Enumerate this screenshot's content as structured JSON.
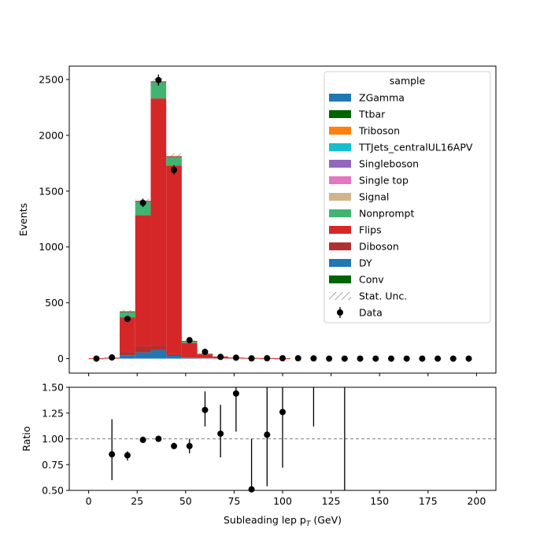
{
  "chart_data": [
    {
      "type": "bar",
      "stacked": true,
      "histogram": true,
      "ylabel": "Events",
      "xlim": [
        -10,
        210
      ],
      "ylim": [
        -130,
        2620
      ],
      "yticks": [
        0,
        500,
        1000,
        1500,
        2000,
        2500
      ],
      "xticks": [
        0,
        25,
        50,
        75,
        100,
        125,
        150,
        175,
        200
      ],
      "bin_edges": [
        0,
        8,
        16,
        24,
        32,
        40,
        48,
        56,
        64,
        72,
        80,
        88,
        96,
        104
      ],
      "legend": {
        "title": "sample",
        "placement": "top-right",
        "entries": [
          "ZGamma",
          "Ttbar",
          "Triboson",
          "TTJets_centralUL16APV",
          "Singleboson",
          "Single top",
          "Signal",
          "Nonprompt",
          "Flips",
          "Diboson",
          "DY",
          "Conv",
          "Stat. Unc.",
          "Data"
        ]
      },
      "series": [
        {
          "name": "ZGamma",
          "color": "#1f77b4",
          "values": [
            0,
            0,
            0,
            0,
            0,
            0,
            0,
            0,
            0,
            0,
            0,
            0,
            0
          ]
        },
        {
          "name": "Ttbar",
          "color": "#006400",
          "values": [
            0,
            0,
            0,
            0,
            0,
            0,
            0,
            0,
            0,
            0,
            0,
            0,
            0
          ]
        },
        {
          "name": "Triboson",
          "color": "#ff7f0e",
          "values": [
            0,
            0,
            0,
            0,
            0,
            0,
            0,
            0,
            0,
            0,
            0,
            0,
            0
          ]
        },
        {
          "name": "TTJets_centralUL16APV",
          "color": "#17becf",
          "values": [
            0,
            0,
            0,
            0,
            0,
            0,
            0,
            0,
            0,
            0,
            0,
            0,
            0
          ]
        },
        {
          "name": "Singleboson",
          "color": "#9467bd",
          "values": [
            0,
            0,
            0,
            0,
            0,
            0,
            0,
            0,
            0,
            0,
            0,
            0,
            0
          ]
        },
        {
          "name": "Single top",
          "color": "#e377c2",
          "values": [
            0,
            0,
            0,
            0,
            0,
            0,
            0,
            0,
            0,
            0,
            0,
            0,
            0
          ]
        },
        {
          "name": "Signal",
          "color": "#d2b48c",
          "values": [
            0,
            0,
            0,
            0,
            0,
            0,
            0,
            0,
            0,
            0,
            0,
            0,
            0
          ]
        },
        {
          "name": "Conv",
          "color": "#006400",
          "values": [
            0,
            0,
            0,
            0,
            0,
            0,
            0,
            0,
            0,
            0,
            0,
            0,
            0
          ]
        },
        {
          "name": "DY",
          "color": "#1f77b4",
          "values": [
            0,
            0,
            30,
            55,
            75,
            25,
            5,
            2,
            1,
            0,
            0,
            0,
            0
          ]
        },
        {
          "name": "Diboson",
          "color": "#b03030",
          "values": [
            0,
            3,
            30,
            55,
            45,
            15,
            5,
            3,
            1,
            1,
            0,
            0,
            0
          ]
        },
        {
          "name": "Flips",
          "color": "#d62728",
          "values": [
            0,
            2,
            310,
            1175,
            2210,
            1690,
            130,
            30,
            10,
            4,
            2,
            1,
            0
          ]
        },
        {
          "name": "Nonprompt",
          "color": "#41b471",
          "values": [
            0,
            0,
            50,
            125,
            150,
            80,
            15,
            5,
            3,
            1,
            1,
            0,
            0
          ]
        }
      ],
      "data_points": {
        "name": "Data",
        "x": [
          4,
          12,
          20,
          28,
          36,
          44,
          52,
          60,
          68,
          76,
          84,
          92,
          100,
          108,
          116,
          124,
          132,
          140,
          148,
          156,
          164,
          172,
          180,
          188,
          196
        ],
        "y": [
          0,
          10,
          355,
          1395,
          2495,
          1690,
          165,
          60,
          15,
          8,
          2,
          3,
          3,
          3,
          2,
          0,
          0,
          0,
          0,
          0,
          0,
          0,
          0,
          0,
          0
        ],
        "yerr": [
          0,
          3,
          19,
          37,
          50,
          41,
          13,
          8,
          4,
          3,
          1.4,
          1.7,
          1.7,
          1.7,
          1.4,
          0,
          0,
          0,
          0,
          0,
          0,
          0,
          0,
          0,
          0
        ]
      }
    },
    {
      "type": "scatter",
      "xlabel": "Subleading lep pT (GeV)",
      "ylabel": "Ratio",
      "xlim": [
        -10,
        210
      ],
      "ylim": [
        0.5,
        1.5
      ],
      "yticks": [
        "0.50",
        "0.75",
        "1.00",
        "1.25",
        "1.50"
      ],
      "xticks": [
        "0",
        "25",
        "50",
        "75",
        "100",
        "125",
        "150",
        "175",
        "200"
      ],
      "reference_line": 1.0,
      "points": {
        "x": [
          12,
          20,
          28,
          36,
          44,
          52,
          60,
          68,
          76,
          84,
          92,
          100
        ],
        "y": [
          0.85,
          0.84,
          0.99,
          1.0,
          0.93,
          0.93,
          1.28,
          1.05,
          1.44,
          0.51,
          1.04,
          1.26
        ],
        "ylow": [
          0.6,
          0.79,
          0.96,
          0.98,
          0.9,
          0.86,
          1.12,
          0.82,
          1.07,
          0.0,
          0.54,
          0.72
        ],
        "yhigh": [
          1.19,
          0.88,
          1.02,
          1.02,
          0.96,
          1.0,
          1.46,
          1.33,
          1.5,
          1.0,
          1.5,
          1.5
        ]
      },
      "error_only": [
        {
          "x": 116,
          "ylow": 1.12,
          "yhigh": 1.5
        },
        {
          "x": 132,
          "ylow": 0.5,
          "yhigh": 1.5
        }
      ]
    }
  ]
}
